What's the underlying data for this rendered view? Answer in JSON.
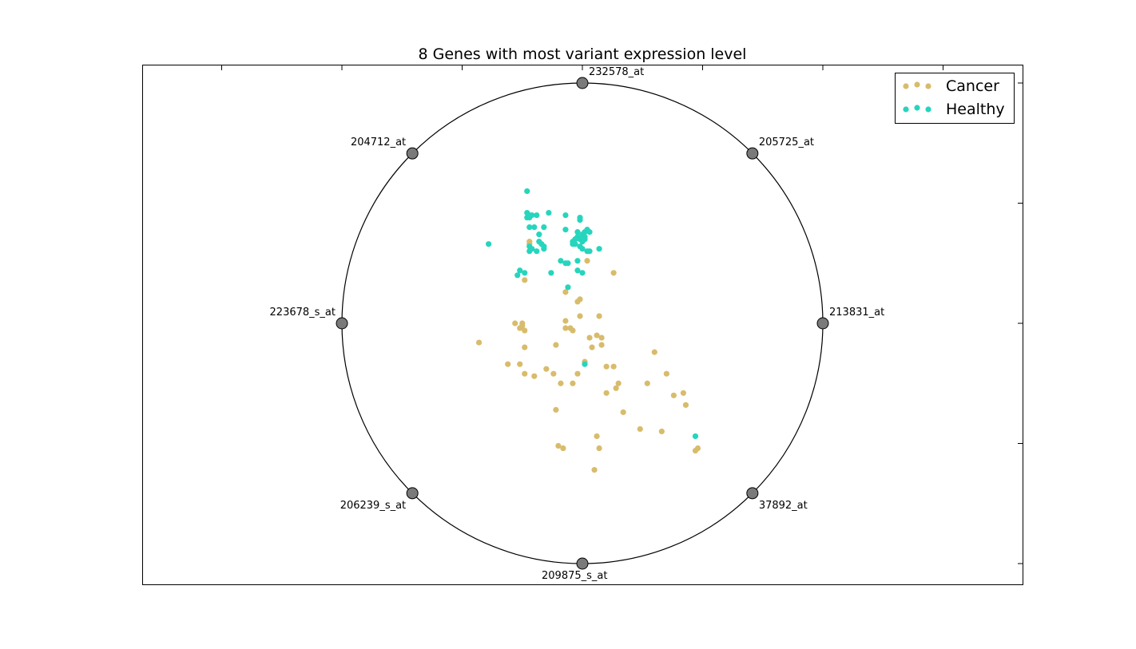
{
  "chart_data": {
    "type": "scatter",
    "title": "8 Genes with most variant expression level",
    "xlabel": "",
    "ylabel": "",
    "xlim": [
      -1.85,
      1.85
    ],
    "ylim": [
      -1.08,
      1.08
    ],
    "grid": false,
    "legend_position": "top-right",
    "anchors": [
      {
        "label": "232578_at",
        "x": 0.0,
        "y": 1.0
      },
      {
        "label": "205725_at",
        "x": 0.7071,
        "y": 0.7071
      },
      {
        "label": "213831_at",
        "x": 1.0,
        "y": 0.0
      },
      {
        "label": "37892_at",
        "x": 0.7071,
        "y": -0.7071
      },
      {
        "label": "209875_s_at",
        "x": 0.0,
        "y": -1.0
      },
      {
        "label": "206239_s_at",
        "x": -0.7071,
        "y": -0.7071
      },
      {
        "label": "223678_s_at",
        "x": -1.0,
        "y": 0.0
      },
      {
        "label": "204712_at",
        "x": -0.7071,
        "y": 0.7071
      }
    ],
    "series": [
      {
        "name": "Cancer",
        "color": "#d8bc6c",
        "points": [
          [
            -0.22,
            0.34
          ],
          [
            -0.24,
            0.18
          ],
          [
            -0.28,
            0.0
          ],
          [
            -0.25,
            -0.01
          ],
          [
            -0.25,
            0.0
          ],
          [
            -0.26,
            -0.02
          ],
          [
            -0.24,
            -0.03
          ],
          [
            -0.43,
            -0.08
          ],
          [
            -0.24,
            -0.1
          ],
          [
            -0.11,
            -0.09
          ],
          [
            -0.31,
            -0.17
          ],
          [
            -0.26,
            -0.17
          ],
          [
            -0.24,
            -0.21
          ],
          [
            -0.2,
            -0.22
          ],
          [
            -0.15,
            -0.19
          ],
          [
            -0.12,
            -0.21
          ],
          [
            -0.09,
            -0.25
          ],
          [
            -0.04,
            -0.25
          ],
          [
            -0.02,
            -0.21
          ],
          [
            0.01,
            -0.16
          ],
          [
            -0.07,
            0.13
          ],
          [
            -0.02,
            0.09
          ],
          [
            -0.01,
            0.1
          ],
          [
            -0.01,
            0.03
          ],
          [
            -0.07,
            0.01
          ],
          [
            -0.07,
            -0.02
          ],
          [
            -0.05,
            -0.02
          ],
          [
            -0.04,
            -0.03
          ],
          [
            0.03,
            -0.06
          ],
          [
            0.04,
            -0.1
          ],
          [
            0.06,
            -0.05
          ],
          [
            0.08,
            -0.06
          ],
          [
            0.08,
            -0.09
          ],
          [
            0.07,
            0.03
          ],
          [
            0.13,
            -0.18
          ],
          [
            0.1,
            -0.18
          ],
          [
            0.15,
            -0.25
          ],
          [
            0.14,
            -0.27
          ],
          [
            0.1,
            -0.29
          ],
          [
            0.17,
            -0.37
          ],
          [
            -0.11,
            -0.36
          ],
          [
            0.06,
            -0.47
          ],
          [
            0.07,
            -0.52
          ],
          [
            -0.1,
            -0.51
          ],
          [
            -0.08,
            -0.52
          ],
          [
            0.05,
            -0.61
          ],
          [
            0.24,
            -0.44
          ],
          [
            0.33,
            -0.45
          ],
          [
            0.3,
            -0.12
          ],
          [
            0.27,
            -0.25
          ],
          [
            0.35,
            -0.21
          ],
          [
            0.38,
            -0.3
          ],
          [
            0.42,
            -0.29
          ],
          [
            0.43,
            -0.34
          ],
          [
            0.47,
            -0.53
          ],
          [
            0.48,
            -0.52
          ],
          [
            0.02,
            0.26
          ],
          [
            0.13,
            0.21
          ],
          [
            -0.22,
            0.33
          ]
        ]
      },
      {
        "name": "Healthy",
        "color": "#26d5bd",
        "points": [
          [
            -0.23,
            0.55
          ],
          [
            -0.23,
            0.46
          ],
          [
            -0.22,
            0.45
          ],
          [
            -0.21,
            0.45
          ],
          [
            -0.23,
            0.44
          ],
          [
            -0.22,
            0.44
          ],
          [
            -0.19,
            0.45
          ],
          [
            -0.14,
            0.46
          ],
          [
            -0.07,
            0.45
          ],
          [
            -0.01,
            0.43
          ],
          [
            -0.01,
            0.44
          ],
          [
            -0.22,
            0.4
          ],
          [
            -0.2,
            0.4
          ],
          [
            -0.16,
            0.4
          ],
          [
            -0.07,
            0.39
          ],
          [
            -0.18,
            0.37
          ],
          [
            -0.02,
            0.38
          ],
          [
            0.01,
            0.38
          ],
          [
            0.02,
            0.39
          ],
          [
            0.03,
            0.38
          ],
          [
            0.0,
            0.37
          ],
          [
            -0.02,
            0.36
          ],
          [
            -0.03,
            0.35
          ],
          [
            -0.01,
            0.35
          ],
          [
            0.01,
            0.36
          ],
          [
            -0.04,
            0.34
          ],
          [
            0.0,
            0.34
          ],
          [
            -0.01,
            0.32
          ],
          [
            -0.18,
            0.34
          ],
          [
            -0.17,
            0.33
          ],
          [
            -0.39,
            0.33
          ],
          [
            -0.16,
            0.32
          ],
          [
            -0.16,
            0.31
          ],
          [
            -0.22,
            0.32
          ],
          [
            -0.21,
            0.31
          ],
          [
            -0.19,
            0.3
          ],
          [
            -0.22,
            0.3
          ],
          [
            -0.04,
            0.33
          ],
          [
            0.0,
            0.31
          ],
          [
            0.02,
            0.3
          ],
          [
            0.03,
            0.3
          ],
          [
            0.07,
            0.31
          ],
          [
            -0.09,
            0.26
          ],
          [
            -0.07,
            0.25
          ],
          [
            -0.06,
            0.25
          ],
          [
            -0.02,
            0.26
          ],
          [
            -0.02,
            0.22
          ],
          [
            0.0,
            0.21
          ],
          [
            -0.13,
            0.21
          ],
          [
            -0.26,
            0.22
          ],
          [
            -0.24,
            0.21
          ],
          [
            -0.27,
            0.2
          ],
          [
            -0.06,
            0.15
          ],
          [
            0.01,
            -0.17
          ],
          [
            0.47,
            -0.47
          ],
          [
            -0.03,
            0.33
          ],
          [
            0.01,
            0.35
          ]
        ]
      }
    ]
  },
  "legend_title": ""
}
